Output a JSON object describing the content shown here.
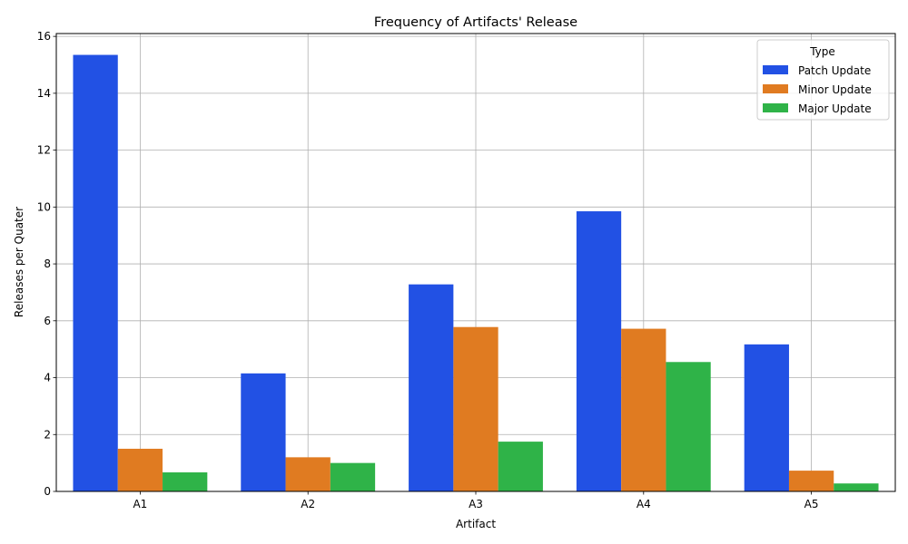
{
  "chart_data": {
    "type": "bar",
    "title": "Frequency of Artifacts' Release",
    "xlabel": "Artifact",
    "ylabel": "Releases per Quater",
    "categories": [
      "A1",
      "A2",
      "A3",
      "A4",
      "A5"
    ],
    "series": [
      {
        "name": "Patch Update",
        "color": "#2251e4",
        "values": [
          15.35,
          4.15,
          7.28,
          9.85,
          5.17
        ]
      },
      {
        "name": "Minor Update",
        "color": "#e07b21",
        "values": [
          1.5,
          1.2,
          5.78,
          5.72,
          0.73
        ]
      },
      {
        "name": "Major Update",
        "color": "#2fb348",
        "values": [
          0.67,
          1.0,
          1.75,
          4.55,
          0.28
        ]
      }
    ],
    "ylim": [
      0,
      16.1
    ],
    "yticks": [
      0,
      2,
      4,
      6,
      8,
      10,
      12,
      14,
      16
    ],
    "grid": true,
    "legend": {
      "title": "Type",
      "placement": "top-right"
    }
  }
}
